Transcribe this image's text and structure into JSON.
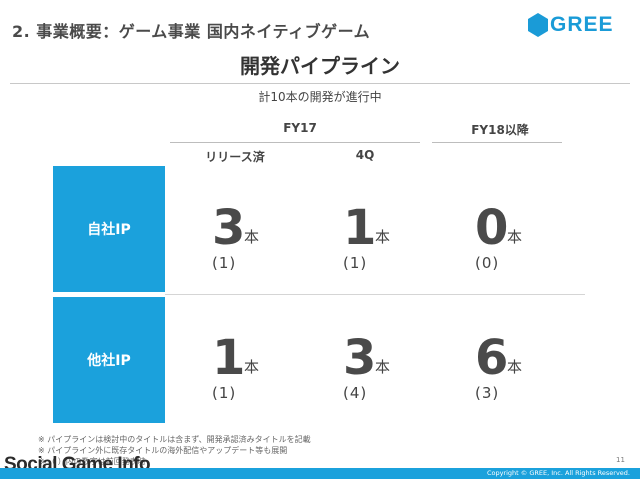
{
  "slide_title": "2. 事業概要：ゲーム事業 国内ネイティブゲーム",
  "logo": {
    "text": "GREE",
    "color": "#1a9bd7"
  },
  "heading": "開発パイプライン",
  "subheading": "計10本の開発が進行中",
  "periods": {
    "fy17": "FY17",
    "fy18": "FY18以降"
  },
  "columns": {
    "released": "リリース済",
    "q4": "4Q"
  },
  "rows": [
    {
      "label": "自社IP",
      "cells": [
        {
          "count": "3",
          "unit": "本",
          "paren": "(1)"
        },
        {
          "count": "1",
          "unit": "本",
          "paren": "(1)"
        },
        {
          "count": "0",
          "unit": "本",
          "paren": "(0)"
        }
      ]
    },
    {
      "label": "他社IP",
      "cells": [
        {
          "count": "1",
          "unit": "本",
          "paren": "(1)"
        },
        {
          "count": "3",
          "unit": "本",
          "paren": "(4)"
        },
        {
          "count": "6",
          "unit": "本",
          "paren": "(3)"
        }
      ]
    }
  ],
  "notes": [
    "※ パイプラインは検討中のタイトルは含まず、開発承認済みタイトルを記載",
    "※ パイプライン外に既存タイトルの海外配信やアップデート等も展開",
    "※ （ ）内の数字は前回発表時"
  ],
  "watermark": "Social Game Info",
  "page_number": "11",
  "copyright": "Copyright © GREE, Inc. All Rights Reserved.",
  "accent_color": "#1ba1dc"
}
